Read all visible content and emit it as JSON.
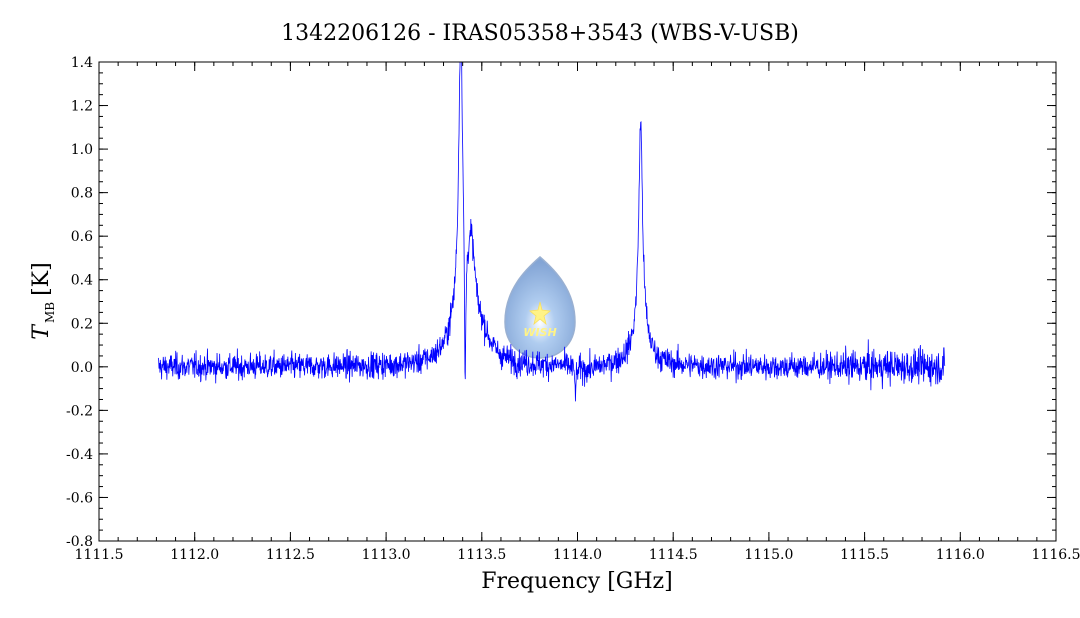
{
  "chart_data": {
    "type": "line",
    "title": "1342206126 - IRAS05358+3543 (WBS-V-USB)",
    "xlabel": "Frequency [GHz]",
    "ylabel_main": "T",
    "ylabel_sub": "MB",
    "ylabel_unit": "[K]",
    "xlim": [
      1111.5,
      1116.5
    ],
    "ylim": [
      -0.8,
      1.4
    ],
    "x_ticks": [
      1111.5,
      1112.0,
      1112.5,
      1113.0,
      1113.5,
      1114.0,
      1114.5,
      1115.0,
      1115.5,
      1116.0,
      1116.5
    ],
    "x_tick_labels": [
      "1111.5",
      "1112.0",
      "1112.5",
      "1113.0",
      "1113.5",
      "1114.0",
      "1114.5",
      "1115.0",
      "1115.5",
      "1116.0",
      "1116.5"
    ],
    "y_ticks": [
      -0.8,
      -0.6,
      -0.4,
      -0.2,
      0.0,
      0.2,
      0.4,
      0.6,
      0.8,
      1.0,
      1.2,
      1.4
    ],
    "y_tick_labels": [
      "-0.8",
      "-0.6",
      "-0.4",
      "-0.2",
      "0.0",
      "0.2",
      "0.4",
      "0.6",
      "0.8",
      "1.0",
      "1.2",
      "1.4"
    ],
    "series": [
      {
        "color": "#0000ff",
        "x_range": [
          1111.81,
          1115.92
        ],
        "noise_rms": 0.03,
        "features": [
          {
            "center": 1113.39,
            "amplitude": 1.28,
            "width": 0.012
          },
          {
            "center": 1113.385,
            "amplitude": 0.22,
            "width": 0.06
          },
          {
            "center": 1113.413,
            "amplitude": -0.72,
            "width": 0.004
          },
          {
            "center": 1113.445,
            "amplitude": 0.4,
            "width": 0.025
          },
          {
            "center": 1113.5,
            "amplitude": 0.1,
            "width": 0.06
          },
          {
            "center": 1113.99,
            "amplitude": -0.12,
            "width": 0.004
          },
          {
            "center": 1114.33,
            "amplitude": 0.97,
            "width": 0.012
          },
          {
            "center": 1114.33,
            "amplitude": 0.15,
            "width": 0.05
          }
        ]
      }
    ],
    "grid": false,
    "legend": "none"
  },
  "watermark": {
    "text": "WISH"
  }
}
